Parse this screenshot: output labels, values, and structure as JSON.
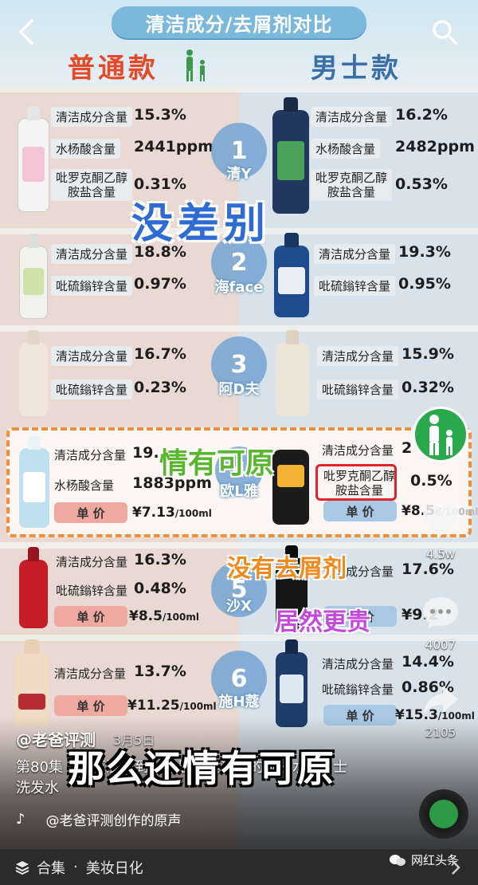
{
  "header": {
    "title": "清洁成分/去屑剂对比",
    "left_col": "普通款",
    "right_col": "男士款"
  },
  "rows": [
    {
      "num": "1",
      "brand": "清Y",
      "left": [
        {
          "label": "清洁成分含量",
          "value": "15.3%"
        },
        {
          "label": "水杨酸含量",
          "value": "2441ppm"
        },
        {
          "label": "吡罗克酮乙醇",
          "label2": "胺盐含量",
          "value": "0.31%"
        }
      ],
      "right": [
        {
          "label": "清洁成分含量",
          "value": "16.2%"
        },
        {
          "label": "水杨酸含量",
          "value": "2482ppm"
        },
        {
          "label": "吡罗克酮乙醇",
          "label2": "胺盐含量",
          "value": "0.53%"
        }
      ]
    },
    {
      "num": "2",
      "brand": "海face",
      "left": [
        {
          "label": "清洁成分含量",
          "value": "18.8%"
        },
        {
          "label": "吡硫鎓锌含量",
          "value": "0.97%"
        }
      ],
      "right": [
        {
          "label": "清洁成分含量",
          "value": "19.3%"
        },
        {
          "label": "吡硫鎓锌含量",
          "value": "0.95%"
        }
      ]
    },
    {
      "num": "3",
      "brand": "阿D夫",
      "left": [
        {
          "label": "清洁成分含量",
          "value": "16.7%"
        },
        {
          "label": "吡硫鎓锌含量",
          "value": "0.23%"
        }
      ],
      "right": [
        {
          "label": "清洁成分含量",
          "value": "15.9%"
        },
        {
          "label": "吡硫鎓锌含量",
          "value": "0.32%"
        }
      ]
    },
    {
      "num": "4",
      "brand": "欧L雅",
      "left": [
        {
          "label": "清洁成分含量",
          "value": "19."
        },
        {
          "label": "水杨酸含量",
          "value": "1883ppm"
        }
      ],
      "left_price_label": "单 价",
      "left_price": "¥7.13",
      "left_price_unit": "/100ml",
      "right": [
        {
          "label": "清洁成分含量",
          "value": "2"
        },
        {
          "label": "吡罗克酮乙醇",
          "label2": "胺盐含量",
          "value": "0.5%"
        }
      ],
      "right_price_label": "单 价",
      "right_price": "¥8.5",
      "right_price_unit": "6/100ml"
    },
    {
      "num": "5",
      "brand": "沙X",
      "left": [
        {
          "label": "清洁成分含量",
          "value": "16.3%"
        },
        {
          "label": "吡硫鎓锌含量",
          "value": "0.48%"
        }
      ],
      "left_price_label": "单 价",
      "left_price": "¥8.5",
      "left_price_unit": "/100ml",
      "right": [
        {
          "label": "清洁成分含量",
          "value": "17.6%"
        },
        {
          "label": "",
          "value": "¥9.2"
        }
      ],
      "right_price_label": "单 价"
    },
    {
      "num": "6",
      "brand": "施H蔻",
      "left": [
        {
          "label": "清洁成分含量",
          "value": "13.7%"
        }
      ],
      "left_price_label": "单 价",
      "left_price": "¥11.25",
      "left_price_unit": "/100ml",
      "right": [
        {
          "label": "清洁成分含量",
          "value": "14.4%"
        },
        {
          "label": "吡硫鎓锌含量",
          "value": "0.86%"
        }
      ],
      "right_price_label": "单 价",
      "right_price": "¥15.3",
      "right_price_unit": "/100ml"
    }
  ],
  "overlays": {
    "no_difference": "没差别",
    "understandable": "情有可原",
    "no_antidandruff": "没有去屑剂",
    "more_expensive": "居然更贵"
  },
  "rail": {
    "likes": "4.5w",
    "comments": "4007",
    "shares": "2105"
  },
  "post": {
    "author": "@老爸评测",
    "date": "3月5日",
    "caption": "第80集｜万万没想到，你居然是这样的洗发水#男士洗发水",
    "subtitle": "那么还情有可原",
    "music": "@老爸评测创作的原声"
  },
  "collection": {
    "label": "合集",
    "dot": "·",
    "name": "美妆日化"
  },
  "watermark": "网红头条",
  "colors": {
    "left_bg": "#ead9d2",
    "right_bg": "#d7e2ea",
    "accent_red": "#e24a2a",
    "accent_blue": "#3a6fa8",
    "banner": "#7ab8dc"
  }
}
